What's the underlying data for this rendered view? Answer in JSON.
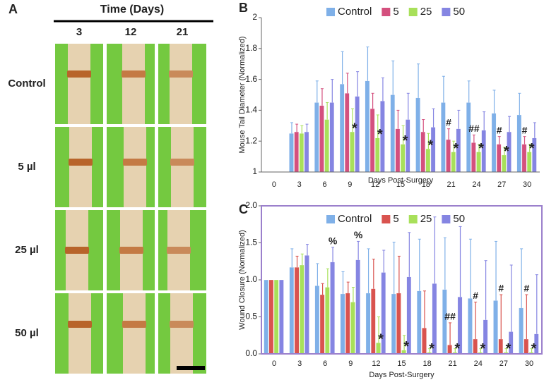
{
  "panel_a": {
    "label": "A",
    "title": "Time (Days)",
    "columns": [
      "3",
      "12",
      "21"
    ],
    "rows": [
      "Control",
      "5 µl",
      "25 µl",
      "50 µl"
    ]
  },
  "chart_data": [
    {
      "type": "bar",
      "panel": "B",
      "y_label": "Mouse Tail Diameter (Normalized)",
      "x_label": "Days Post-Surgery",
      "categories": [
        "0",
        "3",
        "6",
        "9",
        "12",
        "15",
        "18",
        "21",
        "24",
        "27",
        "30"
      ],
      "series": [
        {
          "name": "Control",
          "color": "#7fb0e8",
          "values": [
            1,
            1.25,
            1.45,
            1.57,
            1.59,
            1.5,
            1.48,
            1.45,
            1.45,
            1.38,
            1.37
          ],
          "errors": [
            0,
            0.07,
            0.14,
            0.21,
            0.22,
            0.22,
            0.22,
            0.17,
            0.14,
            0.15,
            0.14
          ]
        },
        {
          "name": "5",
          "color": "#d4507e",
          "values": [
            1,
            1.26,
            1.43,
            1.51,
            1.41,
            1.28,
            1.26,
            1.21,
            1.19,
            1.18,
            1.18
          ],
          "errors": [
            0,
            0.05,
            0.11,
            0.13,
            0.1,
            0.12,
            0.08,
            0.07,
            0.05,
            0.05,
            0.05
          ]
        },
        {
          "name": "25",
          "color": "#a8e05a",
          "values": [
            1,
            1.25,
            1.34,
            1.26,
            1.22,
            1.18,
            1.15,
            1.13,
            1.13,
            1.11,
            1.13
          ],
          "errors": [
            0,
            0.05,
            0.11,
            0.15,
            0.15,
            0.12,
            0.1,
            0.07,
            0.05,
            0.05,
            0.05
          ]
        },
        {
          "name": "50",
          "color": "#8585e2",
          "values": [
            1,
            1.26,
            1.45,
            1.49,
            1.46,
            1.34,
            1.29,
            1.28,
            1.27,
            1.26,
            1.22
          ],
          "errors": [
            0,
            0.05,
            0.15,
            0.16,
            0.15,
            0.17,
            0.12,
            0.12,
            0.12,
            0.1,
            0.1
          ]
        }
      ],
      "ylim": [
        1,
        2
      ],
      "yticks": [
        1,
        1.2,
        1.4,
        1.6,
        1.8,
        2
      ],
      "frame": false,
      "annotations": [
        {
          "text": "*",
          "category": "9",
          "series": "25"
        },
        {
          "text": "*",
          "category": "12",
          "series": "25"
        },
        {
          "text": "*",
          "category": "15",
          "series": "25"
        },
        {
          "text": "*",
          "category": "18",
          "series": "25"
        },
        {
          "text": "*",
          "category": "21",
          "series": "25"
        },
        {
          "text": "*",
          "category": "24",
          "series": "25"
        },
        {
          "text": "*",
          "category": "27",
          "series": "25"
        },
        {
          "text": "*",
          "category": "30",
          "series": "25"
        },
        {
          "text": "#",
          "category": "21",
          "series": "5"
        },
        {
          "text": "##",
          "category": "24",
          "series": "5"
        },
        {
          "text": "#",
          "category": "27",
          "series": "5"
        },
        {
          "text": "#",
          "category": "30",
          "series": "5"
        }
      ]
    },
    {
      "type": "bar",
      "panel": "C",
      "y_label": "Wound Closure (Normalized)",
      "x_label": "Days Post-Surgery",
      "categories": [
        "0",
        "3",
        "6",
        "9",
        "12",
        "15",
        "18",
        "21",
        "24",
        "27",
        "30"
      ],
      "series": [
        {
          "name": "Control",
          "color": "#7fb0e8",
          "values": [
            1,
            1.17,
            0.92,
            0.81,
            0.82,
            0.81,
            0.85,
            0.87,
            0.75,
            0.72,
            0.62
          ],
          "errors": [
            0,
            0.25,
            0.3,
            0.3,
            0.6,
            0.7,
            0.7,
            0.7,
            0.8,
            0.8,
            0.8
          ]
        },
        {
          "name": "5",
          "color": "#d9534f",
          "values": [
            1,
            1.17,
            0.8,
            0.82,
            0.88,
            0.82,
            0.35,
            0.12,
            0.2,
            0.2,
            0.2
          ],
          "errors": [
            0,
            0.15,
            0.15,
            0.15,
            0.4,
            0.5,
            0.5,
            0.3,
            0.5,
            0.6,
            0.6
          ]
        },
        {
          "name": "25",
          "color": "#a8e05a",
          "values": [
            1,
            1.2,
            0.9,
            0.7,
            0.15,
            0.05,
            0.02,
            0.02,
            0.02,
            0.02,
            0.02
          ],
          "errors": [
            0,
            0.15,
            0.25,
            0.2,
            0.35,
            0.2,
            0.05,
            0.05,
            0.05,
            0.05,
            0.05
          ]
        },
        {
          "name": "50",
          "color": "#8585e2",
          "values": [
            1,
            1.33,
            1.24,
            1.27,
            1.1,
            1.04,
            0.95,
            0.77,
            0.46,
            0.3,
            0.27
          ],
          "errors": [
            0,
            0.15,
            0.2,
            0.25,
            0.3,
            0.6,
            0.9,
            0.95,
            0.8,
            0.9,
            0.8
          ]
        }
      ],
      "ylim": [
        0,
        2
      ],
      "yticks": [
        {
          "value": 0,
          "label": "0.0"
        },
        {
          "value": 0.5,
          "label": "0.5"
        },
        {
          "value": 1,
          "label": "1.0"
        },
        {
          "value": 1.5,
          "label": "1.5"
        },
        {
          "value": 2,
          "label": "2.0"
        }
      ],
      "frame": true,
      "annotations": [
        {
          "text": "%",
          "category": "6",
          "series": "50"
        },
        {
          "text": "%",
          "category": "9",
          "series": "50"
        },
        {
          "text": "*",
          "category": "12",
          "series": "25"
        },
        {
          "text": "*",
          "category": "15",
          "series": "25"
        },
        {
          "text": "*",
          "category": "18",
          "series": "25"
        },
        {
          "text": "*",
          "category": "21",
          "series": "25"
        },
        {
          "text": "*",
          "category": "24",
          "series": "25"
        },
        {
          "text": "*",
          "category": "27",
          "series": "25"
        },
        {
          "text": "*",
          "category": "30",
          "series": "25"
        },
        {
          "text": "##",
          "category": "21",
          "series": "5"
        },
        {
          "text": "#",
          "category": "24",
          "series": "5"
        },
        {
          "text": "#",
          "category": "27",
          "series": "5"
        },
        {
          "text": "#",
          "category": "30",
          "series": "5"
        }
      ]
    }
  ]
}
